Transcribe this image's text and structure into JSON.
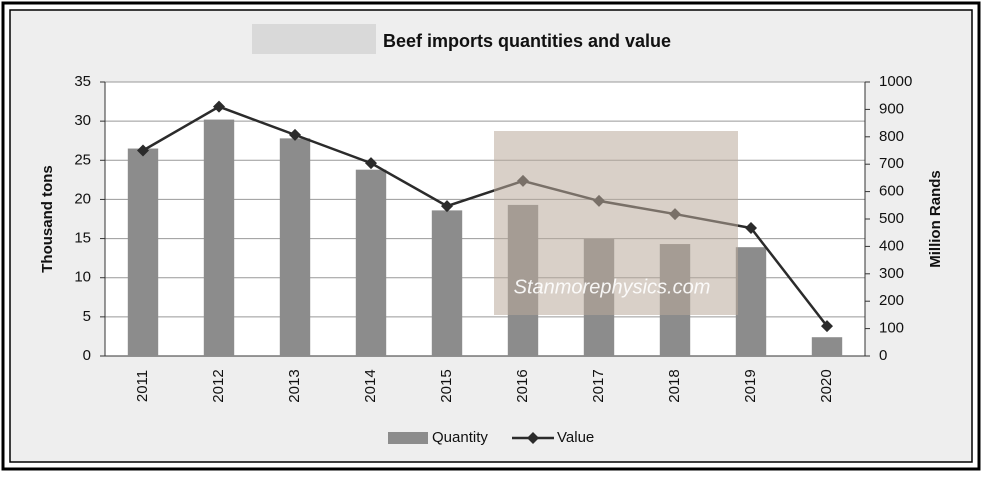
{
  "chart_data": {
    "type": "bar-line",
    "title": "Beef imports quantities and value",
    "ylabel": "Thousand tons",
    "y2label": "Million Rands",
    "categories": [
      "2011",
      "2012",
      "2013",
      "2014",
      "2015",
      "2016",
      "2017",
      "2018",
      "2019",
      "2020"
    ],
    "series": [
      {
        "name": "Quantity",
        "type": "bar",
        "color": "#8c8c8c",
        "values": [
          26.5,
          30.2,
          27.8,
          23.8,
          18.6,
          19.3,
          15,
          14.3,
          13.9,
          2.4
        ]
      },
      {
        "name": "Value",
        "type": "line",
        "axis": "y2",
        "color": "#2b2b2b",
        "values": [
          750,
          910,
          807,
          704,
          547,
          639,
          566,
          518,
          467,
          109
        ]
      }
    ],
    "ylim": [
      0,
      35
    ],
    "yticks": [
      0,
      5,
      10,
      15,
      20,
      25,
      30,
      35
    ],
    "y2lim": [
      0,
      1000
    ],
    "y2ticks": [
      0,
      100,
      200,
      300,
      400,
      500,
      600,
      700,
      800,
      900,
      1000
    ],
    "grid": true,
    "legend": "bottom",
    "watermark": "Stanmorephysics.com"
  }
}
